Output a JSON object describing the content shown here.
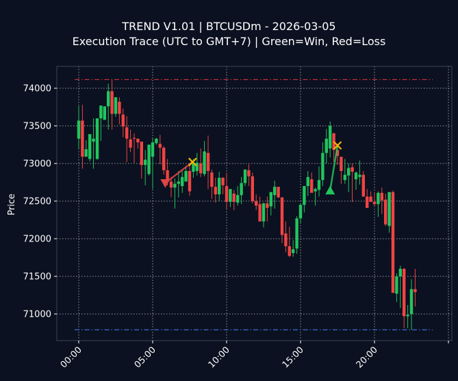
{
  "title": {
    "line1": "TREND V1.01 | BTCUSDm - 2026-03-05",
    "line2": "Execution Trace (UTC to GMT+7) | Green=Win, Red=Loss"
  },
  "colors": {
    "background": "#0b1120",
    "axes_border": "#3a4556",
    "grid": "#c8c8c8",
    "up": "#22c55e",
    "down": "#ef4444",
    "entry_line_loss": "#e04545",
    "entry_line_win": "#22c55e",
    "exit_marker": "#f5b800",
    "upper_level": "#c0303a",
    "lower_level": "#3b6fd0",
    "text": "#ffffff"
  },
  "chart_data": {
    "type": "candlestick",
    "title": "TREND V1.01 | BTCUSDm - 2026-03-05\nExecution Trace (UTC to GMT+7) | Green=Win, Red=Loss",
    "xlabel": "",
    "ylabel": "Price",
    "timeframe": "15m",
    "ylim": [
      70640,
      74290
    ],
    "xlim_hours": [
      -2.9,
      23.8
    ],
    "yticks": [
      71000,
      71500,
      72000,
      72500,
      73000,
      73500,
      74000
    ],
    "xticks": [
      {
        "hour": 0,
        "label": "00:00"
      },
      {
        "hour": 5,
        "label": "05:00"
      },
      {
        "hour": 10,
        "label": "10:00"
      },
      {
        "hour": 15,
        "label": "15:00"
      },
      {
        "hour": 20,
        "label": "20:00"
      },
      {
        "hour": 25,
        "label": ""
      }
    ],
    "grid": true,
    "horizontal_levels": [
      {
        "name": "upper-level",
        "price": 74115,
        "style": "dashdot",
        "color": "#c0303a"
      },
      {
        "name": "lower-level",
        "price": 70790,
        "style": "dashdot",
        "color": "#3b6fd0"
      }
    ],
    "trades": [
      {
        "result": "Loss",
        "direction": "sell",
        "entry_hour": 5.85,
        "entry_price": 72740,
        "exit_hour": 7.7,
        "exit_price": 73020
      },
      {
        "result": "Win",
        "direction": "buy",
        "entry_hour": 17.0,
        "entry_price": 72640,
        "exit_hour": 17.5,
        "exit_price": 73240
      }
    ],
    "candles": [
      [
        73330,
        73760,
        73200,
        73570
      ],
      [
        73570,
        73780,
        72930,
        73090
      ],
      [
        73090,
        73310,
        73090,
        73190
      ],
      [
        73060,
        73390,
        73030,
        73390
      ],
      [
        73290,
        73600,
        72930,
        73330
      ],
      [
        73060,
        73600,
        73050,
        73600
      ],
      [
        73600,
        73730,
        73300,
        73770
      ],
      [
        73580,
        73760,
        73590,
        73760
      ],
      [
        73760,
        74060,
        73450,
        73960
      ],
      [
        73960,
        74110,
        73450,
        73660
      ],
      [
        73660,
        73880,
        73620,
        73880
      ],
      [
        73820,
        73880,
        73520,
        73660
      ],
      [
        73650,
        73730,
        73350,
        73490
      ],
      [
        73480,
        73630,
        73020,
        73330
      ],
      [
        73320,
        73450,
        73150,
        73210
      ],
      [
        73340,
        73400,
        73010,
        73330
      ],
      [
        73330,
        73260,
        73200,
        73280
      ],
      [
        73290,
        73270,
        72800,
        72980
      ],
      [
        72980,
        73180,
        72710,
        73050
      ],
      [
        72860,
        73120,
        72840,
        73250
      ],
      [
        73090,
        73330,
        72660,
        73280
      ],
      [
        73270,
        73340,
        73250,
        73330
      ],
      [
        73260,
        73380,
        72990,
        73210
      ],
      [
        73210,
        73230,
        72850,
        72910
      ],
      [
        72910,
        73060,
        72710,
        72760
      ],
      [
        72760,
        72820,
        72550,
        72680
      ],
      [
        72680,
        72800,
        72400,
        72730
      ],
      [
        72730,
        72900,
        72550,
        72760
      ],
      [
        72700,
        72900,
        72610,
        72820
      ],
      [
        72760,
        72960,
        72800,
        72900
      ],
      [
        72900,
        72980,
        72570,
        72630
      ],
      [
        72890,
        73060,
        72810,
        73010
      ],
      [
        72900,
        73140,
        72840,
        73010
      ],
      [
        73000,
        73200,
        72820,
        72870
      ],
      [
        72860,
        73300,
        72830,
        73160
      ],
      [
        73140,
        73370,
        72660,
        72900
      ],
      [
        72880,
        72920,
        72530,
        72690
      ],
      [
        72690,
        72810,
        72480,
        72590
      ],
      [
        72590,
        72890,
        72500,
        72810
      ],
      [
        72810,
        72820,
        72590,
        72710
      ],
      [
        72700,
        72880,
        72400,
        72490
      ],
      [
        72490,
        72620,
        72420,
        72660
      ],
      [
        72600,
        72650,
        72380,
        72490
      ],
      [
        72480,
        72700,
        72440,
        72580
      ],
      [
        72580,
        72820,
        72460,
        72740
      ],
      [
        72740,
        72910,
        72700,
        72920
      ],
      [
        72910,
        72990,
        72700,
        72830
      ],
      [
        72830,
        72880,
        72470,
        72500
      ],
      [
        72500,
        72590,
        72380,
        72440
      ],
      [
        72460,
        72560,
        72230,
        72230
      ],
      [
        72230,
        72480,
        72150,
        72470
      ],
      [
        72470,
        72560,
        72230,
        72410
      ],
      [
        72430,
        72620,
        72310,
        72620
      ],
      [
        72580,
        72770,
        72400,
        72690
      ],
      [
        72690,
        72680,
        72540,
        72550
      ],
      [
        72550,
        72430,
        71940,
        72050
      ],
      [
        72070,
        72230,
        71820,
        71900
      ],
      [
        71900,
        72160,
        71760,
        71770
      ],
      [
        71810,
        71980,
        71760,
        71860
      ],
      [
        71870,
        72300,
        71800,
        72270
      ],
      [
        72270,
        72470,
        72200,
        72450
      ],
      [
        72450,
        72700,
        72350,
        72700
      ],
      [
        72700,
        72900,
        72570,
        72820
      ],
      [
        72790,
        72880,
        72670,
        72610
      ],
      [
        72630,
        72680,
        72440,
        72660
      ],
      [
        72650,
        72960,
        72560,
        72780
      ],
      [
        72780,
        73280,
        72700,
        73140
      ],
      [
        73140,
        73460,
        73000,
        73330
      ],
      [
        73200,
        73560,
        73080,
        73500
      ],
      [
        73400,
        73410,
        73020,
        73180
      ],
      [
        73180,
        73260,
        72980,
        73100
      ],
      [
        73090,
        73060,
        72730,
        72900
      ],
      [
        72780,
        73060,
        72730,
        72850
      ],
      [
        72840,
        73000,
        72620,
        72940
      ],
      [
        72950,
        73000,
        72490,
        72890
      ],
      [
        72790,
        72890,
        72650,
        72880
      ],
      [
        72820,
        73040,
        72720,
        72850
      ],
      [
        72850,
        72900,
        72570,
        72560
      ],
      [
        72560,
        72660,
        72460,
        72410
      ],
      [
        72560,
        72630,
        72540,
        72490
      ],
      [
        72490,
        72620,
        72430,
        72460
      ],
      [
        72460,
        72630,
        72290,
        72610
      ],
      [
        72610,
        72680,
        72330,
        72510
      ],
      [
        72520,
        72600,
        72170,
        72190
      ],
      [
        72170,
        72620,
        72080,
        72620
      ],
      [
        72620,
        72640,
        71300,
        71280
      ],
      [
        71270,
        71540,
        71160,
        71500
      ],
      [
        71500,
        71640,
        71080,
        71600
      ],
      [
        71600,
        71610,
        70810,
        70970
      ],
      [
        70970,
        71120,
        70810,
        70990
      ],
      [
        71000,
        71460,
        70790,
        71330
      ],
      [
        71330,
        71600,
        71100,
        71290
      ]
    ]
  },
  "axis": {
    "ylabel": "Price"
  }
}
